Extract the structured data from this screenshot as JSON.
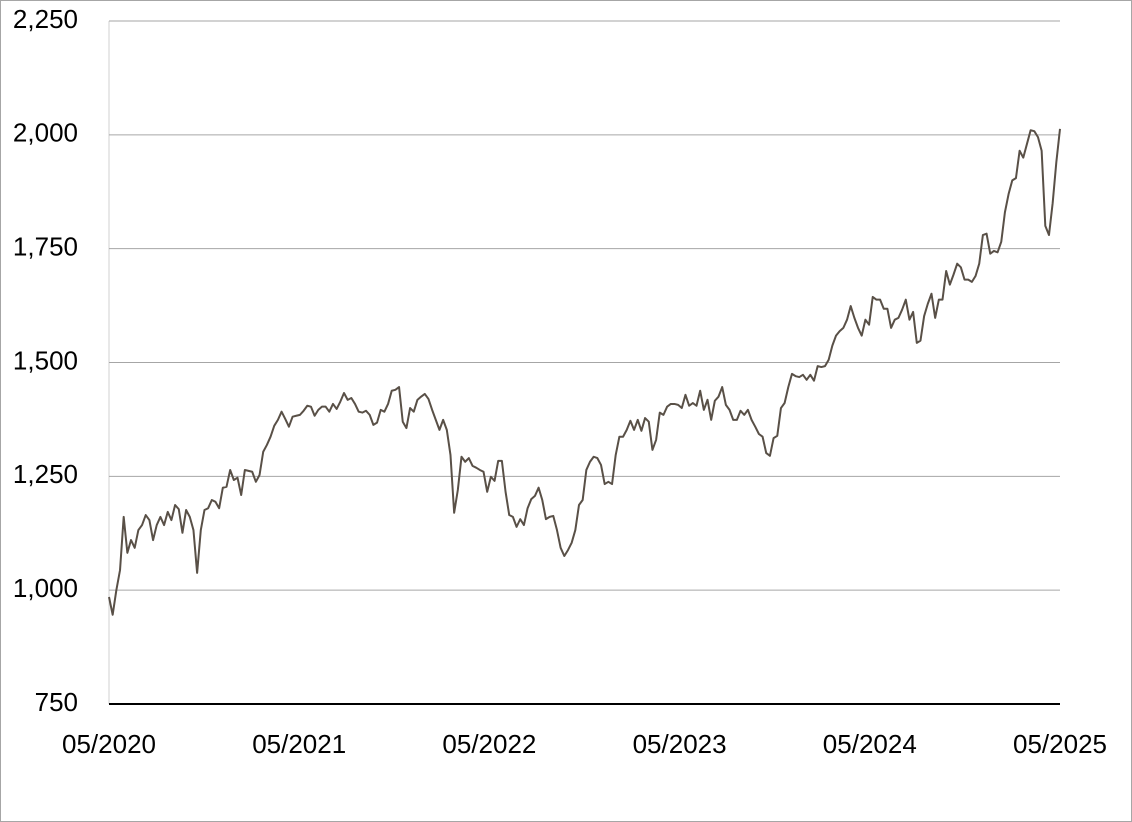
{
  "chart_data": {
    "type": "line",
    "series": [
      {
        "color": "#595047",
        "values": [
          985,
          946,
          1000,
          1044,
          1161,
          1082,
          1110,
          1093,
          1132,
          1143,
          1165,
          1154,
          1110,
          1143,
          1161,
          1143,
          1172,
          1154,
          1187,
          1178,
          1126,
          1176,
          1161,
          1132,
          1038,
          1132,
          1176,
          1180,
          1198,
          1194,
          1180,
          1225,
          1227,
          1264,
          1242,
          1247,
          1209,
          1264,
          1262,
          1260,
          1238,
          1253,
          1304,
          1319,
          1337,
          1361,
          1374,
          1392,
          1376,
          1359,
          1381,
          1383,
          1385,
          1394,
          1405,
          1403,
          1383,
          1396,
          1403,
          1403,
          1392,
          1409,
          1398,
          1414,
          1433,
          1418,
          1422,
          1409,
          1392,
          1390,
          1394,
          1385,
          1363,
          1368,
          1396,
          1392,
          1409,
          1438,
          1440,
          1446,
          1370,
          1356,
          1400,
          1392,
          1418,
          1425,
          1431,
          1420,
          1396,
          1374,
          1352,
          1374,
          1352,
          1297,
          1170,
          1220,
          1293,
          1282,
          1290,
          1273,
          1269,
          1264,
          1260,
          1216,
          1249,
          1240,
          1284,
          1284,
          1216,
          1165,
          1161,
          1139,
          1156,
          1143,
          1180,
          1200,
          1207,
          1225,
          1198,
          1156,
          1161,
          1163,
          1132,
          1093,
          1075,
          1088,
          1104,
          1132,
          1187,
          1198,
          1264,
          1282,
          1293,
          1290,
          1275,
          1233,
          1238,
          1233,
          1297,
          1337,
          1337,
          1352,
          1372,
          1352,
          1374,
          1350,
          1378,
          1370,
          1308,
          1330,
          1390,
          1385,
          1403,
          1409,
          1409,
          1407,
          1400,
          1429,
          1405,
          1411,
          1405,
          1438,
          1396,
          1418,
          1374,
          1416,
          1425,
          1446,
          1407,
          1396,
          1374,
          1374,
          1394,
          1385,
          1396,
          1374,
          1359,
          1343,
          1337,
          1301,
          1295,
          1334,
          1339,
          1400,
          1411,
          1446,
          1475,
          1470,
          1468,
          1473,
          1462,
          1473,
          1460,
          1492,
          1490,
          1492,
          1506,
          1537,
          1559,
          1569,
          1576,
          1594,
          1624,
          1598,
          1576,
          1559,
          1594,
          1583,
          1644,
          1638,
          1638,
          1618,
          1618,
          1576,
          1594,
          1598,
          1616,
          1638,
          1594,
          1611,
          1543,
          1548,
          1602,
          1629,
          1651,
          1598,
          1638,
          1638,
          1701,
          1671,
          1693,
          1717,
          1709,
          1682,
          1682,
          1677,
          1690,
          1717,
          1780,
          1783,
          1739,
          1745,
          1742,
          1765,
          1830,
          1870,
          1900,
          1905,
          1965,
          1950,
          1980,
          2010,
          2008,
          1995,
          1965,
          1800,
          1780,
          1850,
          1940,
          2013
        ]
      }
    ],
    "xlim": [
      2020.333,
      2025.333
    ],
    "xticks": [
      {
        "value": 2020.333,
        "label": "05/2020"
      },
      {
        "value": 2021.333,
        "label": "05/2021"
      },
      {
        "value": 2022.333,
        "label": "05/2022"
      },
      {
        "value": 2023.333,
        "label": "05/2023"
      },
      {
        "value": 2024.333,
        "label": "05/2024"
      },
      {
        "value": 2025.333,
        "label": "05/2025"
      }
    ],
    "ylim": [
      750,
      2250
    ],
    "yticks": [
      750,
      {
        "value": 1000,
        "label": "1,000"
      },
      {
        "value": 1250,
        "label": "1,250"
      },
      {
        "value": 1500,
        "label": "1,500"
      },
      {
        "value": 1750,
        "label": "1,750"
      },
      {
        "value": 2000,
        "label": "2,000"
      },
      {
        "value": 2250,
        "label": "2,250"
      }
    ],
    "grid": true
  }
}
